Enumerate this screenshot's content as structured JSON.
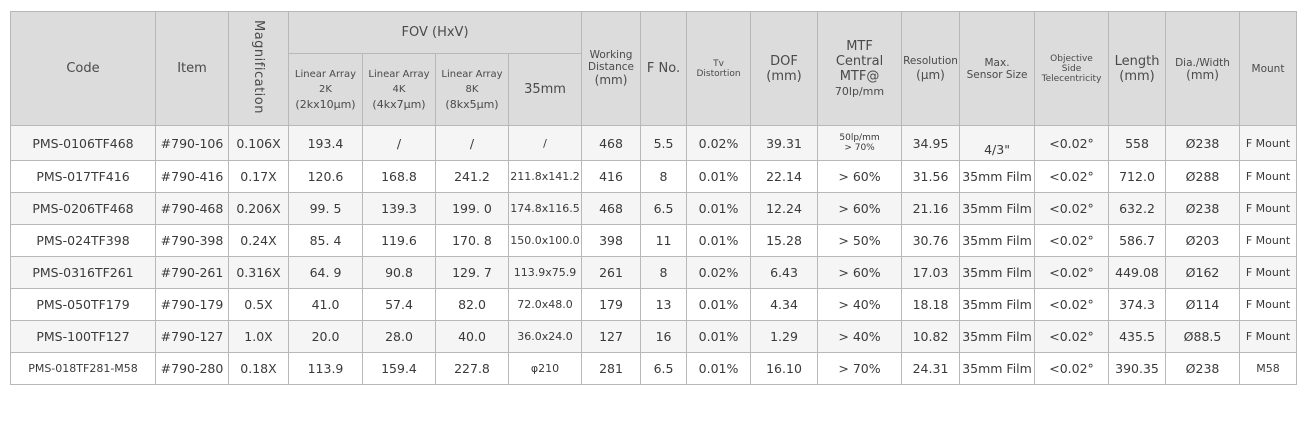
{
  "headers": {
    "code": "Code",
    "item": "Item",
    "magnification": "Magnification",
    "fov": "FOV (HxV)",
    "fov_sub": [
      {
        "line1": "Linear Array",
        "line2": "2K",
        "line3": "(2kx10μm)"
      },
      {
        "line1": "Linear Array",
        "line2": "4K",
        "line3": "(4kx7μm)"
      },
      {
        "line1": "Linear Array",
        "line2": "8K",
        "line3": "(8kx5μm)"
      }
    ],
    "fov_35mm": "35mm",
    "working_distance": {
      "line1": "Working",
      "line2": "Distance",
      "line3": "(mm)"
    },
    "fno": "F No.",
    "tv_distortion": {
      "line1": "Tv",
      "line2": "Distortion"
    },
    "dof": {
      "line1": "DOF",
      "line2": "(mm)"
    },
    "mtf": {
      "line1": "MTF",
      "line2": "Central",
      "line3": "MTF@",
      "line4": "70lp/mm"
    },
    "resolution": {
      "line1": "Resolution",
      "line2": "(μm)"
    },
    "max_sensor": {
      "line1": "Max.",
      "line2": "Sensor Size"
    },
    "telecentricity": {
      "line1": "Objective",
      "line2": "Side",
      "line3": "Telecentricity"
    },
    "length": {
      "line1": "Length",
      "line2": "(mm)"
    },
    "dia": {
      "line1": "Dia./Width",
      "line2": "(mm)"
    },
    "mount": "Mount"
  },
  "rows": [
    {
      "code": "PMS-0106TF468",
      "item": "#790-106",
      "mag": "0.106X",
      "fov2k": "193.4",
      "fov4k": "/",
      "fov8k": "/",
      "fov35": "/",
      "wd": "468",
      "fno": "5.5",
      "tv": "0.02%",
      "dof": "39.31",
      "mtf": "50lp/mm",
      "mtf2": "> 70%",
      "res": "34.95",
      "sensor": "4/3\"",
      "tele": "<0.02°",
      "length": "558",
      "dia": "Ø238",
      "mount": "F Mount"
    },
    {
      "code": "PMS-017TF416",
      "item": "#790-416",
      "mag": "0.17X",
      "fov2k": "120.6",
      "fov4k": "168.8",
      "fov8k": "241.2",
      "fov35": "211.8x141.2",
      "wd": "416",
      "fno": "8",
      "tv": "0.01%",
      "dof": "22.14",
      "mtf": "> 60%",
      "mtf2": "",
      "res": "31.56",
      "sensor": "35mm Film",
      "tele": "<0.02°",
      "length": "712.0",
      "dia": "Ø288",
      "mount": "F Mount"
    },
    {
      "code": "PMS-0206TF468",
      "item": "#790-468",
      "mag": "0.206X",
      "fov2k": "99. 5",
      "fov4k": "139.3",
      "fov8k": "199. 0",
      "fov35": "174.8x116.5",
      "wd": "468",
      "fno": "6.5",
      "tv": "0.01%",
      "dof": "12.24",
      "mtf": "> 60%",
      "mtf2": "",
      "res": "21.16",
      "sensor": "35mm Film",
      "tele": "<0.02°",
      "length": "632.2",
      "dia": "Ø238",
      "mount": "F Mount"
    },
    {
      "code": "PMS-024TF398",
      "item": "#790-398",
      "mag": "0.24X",
      "fov2k": "85. 4",
      "fov4k": "119.6",
      "fov8k": "170. 8",
      "fov35": "150.0x100.0",
      "wd": "398",
      "fno": "11",
      "tv": "0.01%",
      "dof": "15.28",
      "mtf": "> 50%",
      "mtf2": "",
      "res": "30.76",
      "sensor": "35mm Film",
      "tele": "<0.02°",
      "length": "586.7",
      "dia": "Ø203",
      "mount": "F Mount"
    },
    {
      "code": "PMS-0316TF261",
      "item": "#790-261",
      "mag": "0.316X",
      "fov2k": "64. 9",
      "fov4k": "90.8",
      "fov8k": "129. 7",
      "fov35": "113.9x75.9",
      "wd": "261",
      "fno": "8",
      "tv": "0.02%",
      "dof": "6.43",
      "mtf": "> 60%",
      "mtf2": "",
      "res": "17.03",
      "sensor": "35mm Film",
      "tele": "<0.02°",
      "length": "449.08",
      "dia": "Ø162",
      "mount": "F Mount"
    },
    {
      "code": "PMS-050TF179",
      "item": "#790-179",
      "mag": "0.5X",
      "fov2k": "41.0",
      "fov4k": "57.4",
      "fov8k": "82.0",
      "fov35": "72.0x48.0",
      "wd": "179",
      "fno": "13",
      "tv": "0.01%",
      "dof": "4.34",
      "mtf": "> 40%",
      "mtf2": "",
      "res": "18.18",
      "sensor": "35mm Film",
      "tele": "<0.02°",
      "length": "374.3",
      "dia": "Ø114",
      "mount": "F Mount"
    },
    {
      "code": "PMS-100TF127",
      "item": "#790-127",
      "mag": "1.0X",
      "fov2k": "20.0",
      "fov4k": "28.0",
      "fov8k": "40.0",
      "fov35": "36.0x24.0",
      "wd": "127",
      "fno": "16",
      "tv": "0.01%",
      "dof": "1.29",
      "mtf": "> 40%",
      "mtf2": "",
      "res": "10.82",
      "sensor": "35mm Film",
      "tele": "<0.02°",
      "length": "435.5",
      "dia": "Ø88.5",
      "mount": "F Mount"
    },
    {
      "code": "PMS-018TF281-M58",
      "item": "#790-280",
      "mag": "0.18X",
      "fov2k": "113.9",
      "fov4k": "159.4",
      "fov8k": "227.8",
      "fov35": "φ210",
      "wd": "281",
      "fno": "6.5",
      "tv": "0.01%",
      "dof": "16.10",
      "mtf": "> 70%",
      "mtf2": "",
      "res": "24.31",
      "sensor": "35mm Film",
      "tele": "<0.02°",
      "length": "390.35",
      "dia": "Ø238",
      "mount": "M58"
    }
  ]
}
